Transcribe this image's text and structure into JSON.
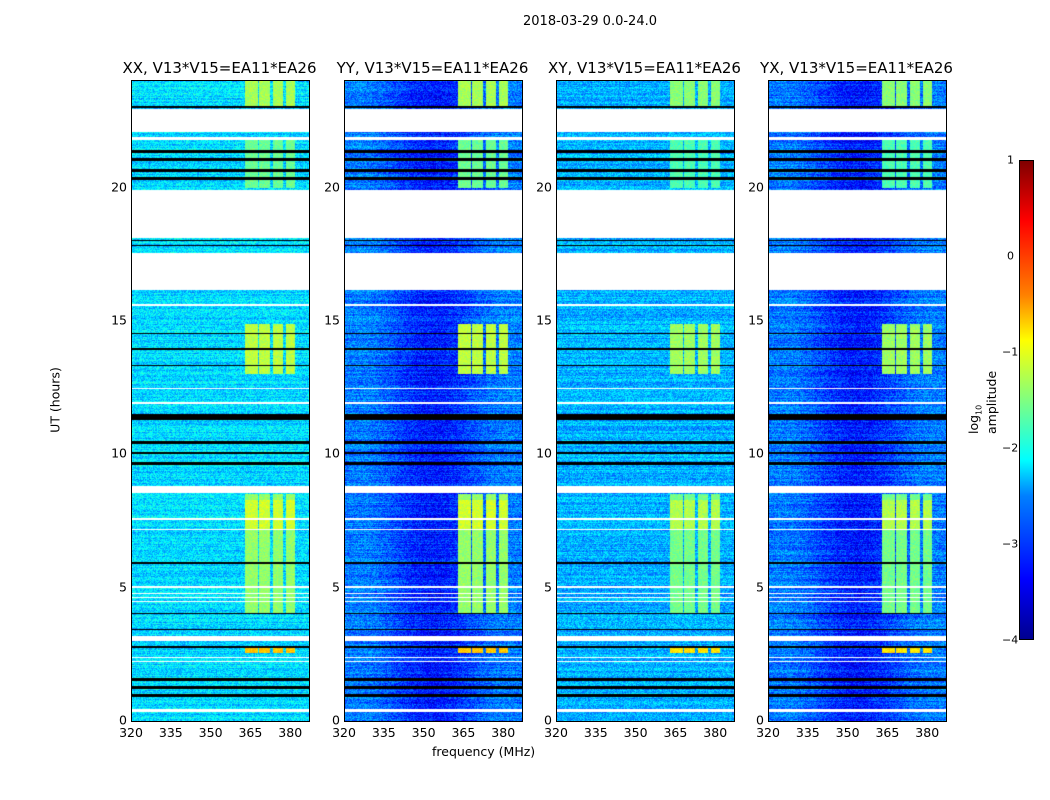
{
  "suptitle": "2018-03-29 0.0-24.0",
  "chart_data": {
    "type": "heatmap",
    "xlabel": "frequency (MHz)",
    "ylabel": "UT (hours)",
    "xlim": [
      320,
      386.7
    ],
    "ylim": [
      0,
      24
    ],
    "xticks": [
      "320",
      "335",
      "350",
      "365",
      "380"
    ],
    "xtick_values": [
      320,
      335,
      350,
      365,
      380
    ],
    "yticks": [
      "0",
      "5",
      "10",
      "15",
      "20"
    ],
    "ytick_values": [
      0,
      5,
      10,
      15,
      20
    ],
    "colorbar": {
      "label_pre": "log",
      "label_sub": "10",
      "label_post": " amplitude",
      "range": [
        -4,
        1
      ],
      "ticks": [
        "1",
        "0",
        "−1",
        "−2",
        "−3",
        "−4"
      ],
      "tick_values": [
        1,
        0,
        -1,
        -2,
        -3,
        -4
      ]
    },
    "panels": [
      {
        "title": "XX, V13*V15=EA11*EA26",
        "base_log_amp": -2.3
      },
      {
        "title": "YY, V13*V15=EA11*EA26",
        "base_log_amp": -3.0
      },
      {
        "title": "XY, V13*V15=EA11*EA26",
        "base_log_amp": -2.5
      },
      {
        "title": "YX, V13*V15=EA11*EA26",
        "base_log_amp": -3.0
      }
    ],
    "flagged_hours": [
      [
        0.35,
        0.45
      ],
      [
        2.2,
        2.25
      ],
      [
        2.35,
        2.4
      ],
      [
        3.0,
        3.2
      ],
      [
        4.45,
        4.5
      ],
      [
        4.6,
        4.65
      ],
      [
        4.75,
        4.8
      ],
      [
        5.0,
        5.05
      ],
      [
        7.15,
        7.2
      ],
      [
        7.55,
        7.6
      ],
      [
        8.55,
        8.8
      ],
      [
        11.9,
        11.95
      ],
      [
        12.45,
        12.5
      ],
      [
        15.55,
        15.65
      ],
      [
        16.15,
        17.55
      ],
      [
        18.1,
        19.9
      ],
      [
        21.8,
        21.9
      ],
      [
        22.1,
        22.95
      ]
    ],
    "dropout_hours": [
      [
        0.9,
        1.0
      ],
      [
        1.2,
        1.3
      ],
      [
        1.5,
        1.6
      ],
      [
        2.75,
        2.8
      ],
      [
        3.4,
        3.45
      ],
      [
        4.0,
        4.05
      ],
      [
        5.9,
        5.95
      ],
      [
        9.6,
        9.7
      ],
      [
        10.0,
        10.1
      ],
      [
        10.4,
        10.5
      ],
      [
        11.3,
        11.5
      ],
      [
        13.3,
        13.35
      ],
      [
        13.9,
        14.0
      ],
      [
        14.5,
        14.55
      ],
      [
        20.3,
        20.4
      ],
      [
        20.6,
        20.7
      ],
      [
        21.0,
        21.1
      ],
      [
        21.3,
        21.4
      ],
      [
        23.0,
        23.05
      ],
      [
        17.8,
        17.85
      ],
      [
        18.0,
        18.05
      ]
    ],
    "rfi": {
      "freq_blocks_mhz": [
        [
          362.5,
          367.5
        ],
        [
          368,
          372
        ],
        [
          373,
          377
        ],
        [
          378,
          381.5
        ]
      ],
      "events": [
        [
          2.55,
          2.8,
          -0.6
        ],
        [
          4.0,
          8.5,
          -1.4
        ],
        [
          7.2,
          8.3,
          -1.1
        ],
        [
          11.3,
          11.45,
          -0.4
        ],
        [
          13.0,
          14.9,
          -1.2
        ],
        [
          20.0,
          21.8,
          -1.6
        ],
        [
          23.0,
          24.0,
          -1.3
        ]
      ]
    }
  }
}
